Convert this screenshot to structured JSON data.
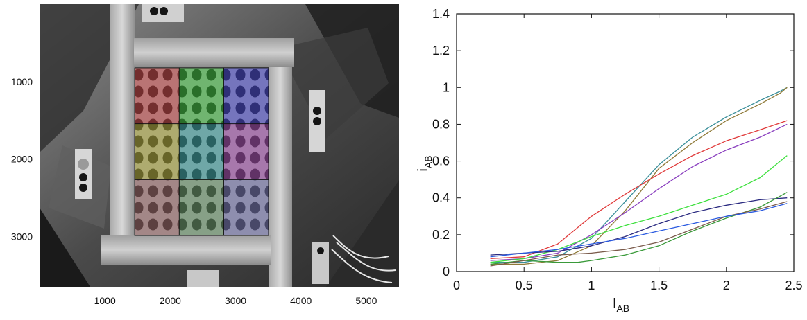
{
  "photo_axes": {
    "x_ticks": [
      "1000",
      "2000",
      "3000",
      "4000",
      "5000"
    ],
    "y_ticks": [
      "1000",
      "2000",
      "3000"
    ],
    "x_range": [
      0,
      5500
    ],
    "y_range": [
      0,
      3650
    ],
    "x_tick_values": [
      1000,
      2000,
      3000,
      4000,
      5000
    ],
    "y_tick_values": [
      1000,
      2000,
      3000
    ]
  },
  "photo": {
    "cells": [
      {
        "color": "#e04848"
      },
      {
        "color": "#3ed83e"
      },
      {
        "color": "#4a4ae8"
      },
      {
        "color": "#c8c23c"
      },
      {
        "color": "#3cb8b8"
      },
      {
        "color": "#b850c4"
      },
      {
        "color": "#b07070"
      },
      {
        "color": "#70a870"
      },
      {
        "color": "#8080c8"
      }
    ]
  },
  "chart_data": {
    "type": "line",
    "xlabel_main": "I",
    "xlabel_sub": "AB",
    "ylabel_main": "i",
    "ylabel_sub": "AB",
    "xlim": [
      0,
      2.5
    ],
    "ylim": [
      0,
      1.4
    ],
    "x_ticks": [
      0,
      0.5,
      1,
      1.5,
      2,
      2.5
    ],
    "x_tick_labels": [
      "0",
      "0.5",
      "1",
      "1.5",
      "2",
      "2.5"
    ],
    "y_ticks": [
      0,
      0.2,
      0.4,
      0.6,
      0.8,
      1,
      1.2,
      1.4
    ],
    "y_tick_labels": [
      "0",
      "0.2",
      "0.4",
      "0.6",
      "0.8",
      "1",
      "1.2",
      "1.4"
    ],
    "series": [
      {
        "color": "#3a8f9a",
        "x": [
          0.25,
          0.5,
          0.75,
          1.0,
          1.25,
          1.5,
          1.75,
          2.0,
          2.25,
          2.4,
          2.45
        ],
        "y": [
          0.05,
          0.05,
          0.08,
          0.18,
          0.38,
          0.58,
          0.73,
          0.84,
          0.93,
          0.98,
          1.0
        ]
      },
      {
        "color": "#8f7a38",
        "x": [
          0.25,
          0.5,
          0.75,
          1.0,
          1.25,
          1.5,
          1.75,
          2.0,
          2.25,
          2.4,
          2.45
        ],
        "y": [
          0.04,
          0.04,
          0.06,
          0.14,
          0.33,
          0.56,
          0.7,
          0.82,
          0.91,
          0.97,
          1.0
        ]
      },
      {
        "color": "#e03a3a",
        "x": [
          0.25,
          0.5,
          0.75,
          1.0,
          1.25,
          1.5,
          1.75,
          2.0,
          2.25,
          2.45
        ],
        "y": [
          0.07,
          0.08,
          0.15,
          0.3,
          0.42,
          0.53,
          0.63,
          0.71,
          0.77,
          0.82
        ]
      },
      {
        "color": "#8a3fbf",
        "x": [
          0.25,
          0.5,
          0.75,
          1.0,
          1.25,
          1.5,
          1.75,
          2.0,
          2.25,
          2.45
        ],
        "y": [
          0.06,
          0.07,
          0.1,
          0.2,
          0.32,
          0.45,
          0.57,
          0.66,
          0.73,
          0.8
        ]
      },
      {
        "color": "#3ee03e",
        "x": [
          0.25,
          0.5,
          0.75,
          1.0,
          1.25,
          1.5,
          1.75,
          2.0,
          2.25,
          2.45
        ],
        "y": [
          0.05,
          0.07,
          0.12,
          0.19,
          0.25,
          0.3,
          0.36,
          0.42,
          0.51,
          0.63
        ]
      },
      {
        "color": "#2a2a80",
        "x": [
          0.25,
          0.5,
          0.75,
          1.0,
          1.25,
          1.5,
          1.75,
          2.0,
          2.25,
          2.45
        ],
        "y": [
          0.09,
          0.1,
          0.11,
          0.14,
          0.19,
          0.26,
          0.32,
          0.36,
          0.39,
          0.4
        ]
      },
      {
        "color": "#3a9a3a",
        "x": [
          0.25,
          0.5,
          0.75,
          0.9,
          1.0,
          1.25,
          1.5,
          1.75,
          2.0,
          2.25,
          2.45
        ],
        "y": [
          0.04,
          0.06,
          0.05,
          0.05,
          0.06,
          0.09,
          0.14,
          0.22,
          0.29,
          0.35,
          0.43
        ]
      },
      {
        "color": "#7a5a4a",
        "x": [
          0.25,
          0.5,
          0.75,
          1.0,
          1.25,
          1.5,
          1.75,
          2.0,
          2.25,
          2.45
        ],
        "y": [
          0.03,
          0.06,
          0.09,
          0.1,
          0.12,
          0.16,
          0.23,
          0.3,
          0.34,
          0.38
        ]
      },
      {
        "color": "#2a5ae0",
        "x": [
          0.25,
          0.5,
          0.75,
          1.0,
          1.25,
          1.5,
          1.75,
          2.0,
          2.25,
          2.45
        ],
        "y": [
          0.08,
          0.1,
          0.12,
          0.15,
          0.18,
          0.22,
          0.26,
          0.3,
          0.33,
          0.37
        ]
      }
    ]
  }
}
